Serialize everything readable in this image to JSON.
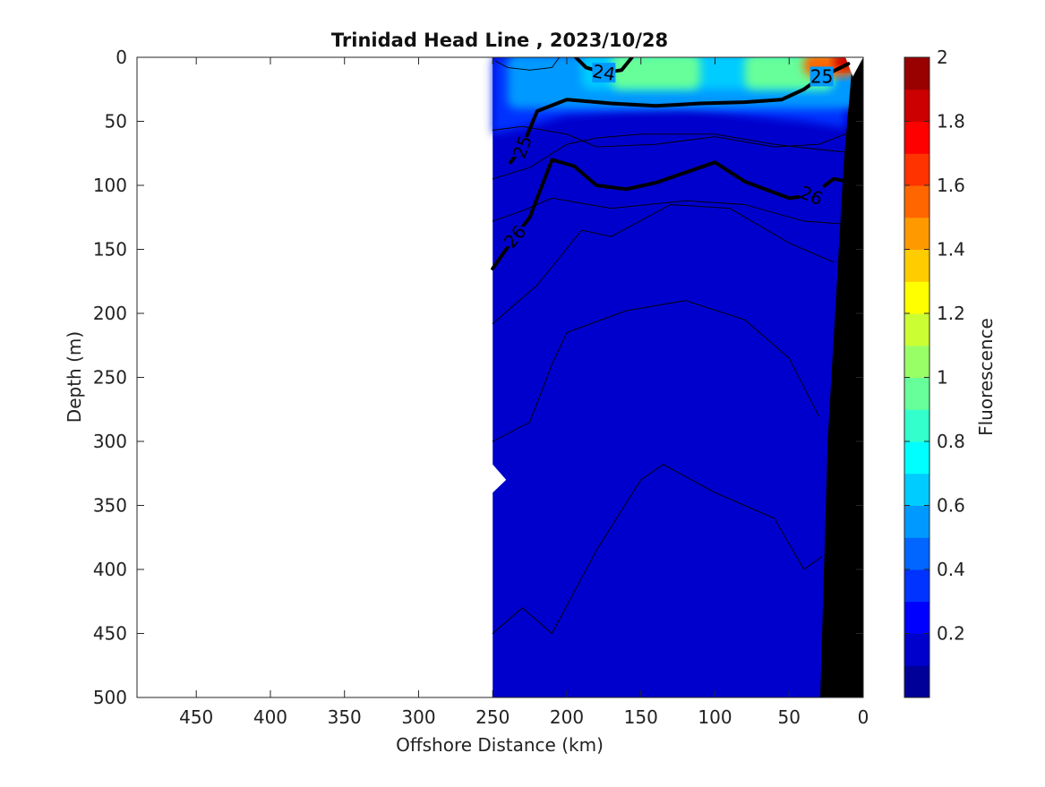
{
  "chart_data": {
    "type": "heatmap",
    "title": "Trinidad Head Line , 2023/10/28",
    "xlabel": "Offshore Distance (km)",
    "ylabel": "Depth (m)",
    "xlim": [
      490,
      0
    ],
    "ylim": [
      0,
      500
    ],
    "x_reversed": true,
    "y_reversed": true,
    "x_ticks": [
      450,
      400,
      350,
      300,
      250,
      200,
      150,
      100,
      50,
      0
    ],
    "y_ticks": [
      0,
      50,
      100,
      150,
      200,
      250,
      300,
      350,
      400,
      450,
      500
    ],
    "colorbar": {
      "label": "Fluorescence",
      "range": [
        0,
        2
      ],
      "step": 0.1,
      "tick_values": [
        0.2,
        0.4,
        0.6,
        0.8,
        1,
        1.2,
        1.4,
        1.6,
        1.8,
        2
      ],
      "tick_labels": [
        "0.2",
        "0.4",
        "0.6",
        "0.8",
        "1",
        "1.2",
        "1.4",
        "1.6",
        "1.8",
        "2"
      ],
      "colormap": "jet"
    },
    "data_extent_km": [
      250,
      10
    ],
    "surface_features": [
      {
        "x": [
          240,
          0
        ],
        "y": [
          0,
          40
        ],
        "level": 0.5
      },
      {
        "x": [
          190,
          20
        ],
        "y": [
          0,
          25
        ],
        "level": 0.7
      },
      {
        "x": [
          170,
          110
        ],
        "y": [
          0,
          25
        ],
        "level": 0.9
      },
      {
        "x": [
          80,
          20
        ],
        "y": [
          0,
          25
        ],
        "level": 0.9
      },
      {
        "x": [
          40,
          5
        ],
        "y": [
          0,
          15
        ],
        "level": 1.5
      },
      {
        "x": [
          20,
          5
        ],
        "y": [
          0,
          10
        ],
        "level": 1.9
      }
    ],
    "density_contours": [
      {
        "label": "24",
        "bold": true,
        "x": [
          194,
          187,
          175,
          163,
          156
        ],
        "y": [
          0,
          8,
          12,
          10,
          0
        ]
      },
      {
        "label": "24",
        "bold": false,
        "x": [
          248,
          240,
          225,
          210,
          205
        ],
        "y": [
          3,
          8,
          10,
          8,
          0
        ]
      },
      {
        "label": "25",
        "bold": true,
        "x": [
          238,
          230,
          220,
          200,
          170,
          140,
          110,
          80,
          55,
          40,
          28,
          15,
          10
        ],
        "y": [
          82,
          70,
          42,
          33,
          36,
          38,
          36,
          35,
          33,
          25,
          15,
          8,
          5
        ]
      },
      {
        "label": "26",
        "bold": true,
        "x": [
          250,
          235,
          225,
          210,
          195,
          180,
          160,
          140,
          120,
          100,
          80,
          50,
          35,
          20,
          10
        ],
        "y": [
          165,
          140,
          125,
          80,
          85,
          100,
          103,
          98,
          90,
          82,
          97,
          110,
          108,
          95,
          97
        ]
      },
      {
        "label": "",
        "bold": false,
        "x": [
          250,
          230,
          200,
          180,
          140,
          100,
          60,
          30,
          12
        ],
        "y": [
          57,
          54,
          60,
          70,
          68,
          62,
          70,
          68,
          60
        ]
      },
      {
        "label": "",
        "bold": false,
        "x": [
          250,
          225,
          200,
          180,
          150,
          100,
          60,
          30,
          12
        ],
        "y": [
          95,
          86,
          68,
          63,
          60,
          60,
          68,
          72,
          74
        ]
      },
      {
        "label": "",
        "bold": false,
        "x": [
          250,
          230,
          210,
          170,
          120,
          80,
          40,
          15
        ],
        "y": [
          128,
          120,
          110,
          118,
          112,
          115,
          128,
          130
        ]
      },
      {
        "label": "",
        "bold": false,
        "x": [
          250,
          220,
          190,
          170,
          130,
          90,
          50,
          20
        ],
        "y": [
          208,
          178,
          135,
          140,
          115,
          118,
          145,
          160
        ]
      },
      {
        "label": "",
        "bold": false,
        "x": [
          250,
          225,
          210,
          200,
          160,
          120,
          80,
          50,
          30
        ],
        "y": [
          300,
          285,
          240,
          215,
          198,
          190,
          205,
          235,
          280
        ]
      },
      {
        "label": "",
        "bold": false,
        "x": [
          250,
          230,
          210,
          180,
          150,
          135,
          100,
          60,
          40,
          28
        ],
        "y": [
          450,
          430,
          450,
          385,
          330,
          318,
          340,
          360,
          400,
          390
        ]
      }
    ]
  }
}
